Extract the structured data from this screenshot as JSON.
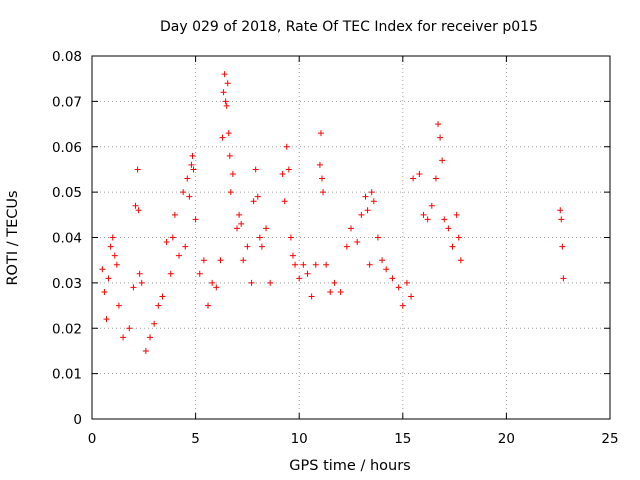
{
  "chart_data": {
    "type": "scatter",
    "title": "Day 029 of 2018, Rate Of TEC Index for receiver p015",
    "xlabel": "GPS time / hours",
    "ylabel": "ROTI / TECUs",
    "xlim": [
      0,
      25
    ],
    "ylim": [
      0,
      0.08
    ],
    "x_ticks": [
      0,
      5,
      10,
      15,
      20,
      25
    ],
    "y_ticks": [
      0,
      0.01,
      0.02,
      0.03,
      0.04,
      0.05,
      0.06,
      0.07,
      0.08
    ],
    "x_tick_labels": [
      "0",
      "5",
      "10",
      "15",
      "20",
      "25"
    ],
    "y_tick_labels": [
      "0",
      "0.01",
      "0.02",
      "0.03",
      "0.04",
      "0.05",
      "0.06",
      "0.07",
      "0.08"
    ],
    "grid": true,
    "marker": "plus",
    "color": "#ff0000",
    "series": [
      {
        "x": [
          0.5,
          0.6,
          0.7,
          0.8,
          0.9,
          1.0,
          1.1,
          1.2,
          1.3,
          1.5,
          1.8,
          2.0,
          2.1,
          2.2,
          2.25,
          2.3,
          2.4,
          2.6,
          2.8,
          3.0,
          3.2,
          3.4,
          3.6,
          3.8,
          3.9,
          4.0,
          4.2,
          4.4,
          4.5,
          4.6,
          4.7,
          4.8,
          4.85,
          4.9,
          5.0,
          5.2,
          5.4,
          5.6,
          5.8,
          6.0,
          6.2,
          6.3,
          6.35,
          6.4,
          6.45,
          6.5,
          6.55,
          6.6,
          6.65,
          6.7,
          6.8,
          7.0,
          7.1,
          7.2,
          7.3,
          7.5,
          7.7,
          7.8,
          7.9,
          8.0,
          8.1,
          8.2,
          8.4,
          8.6,
          9.2,
          9.3,
          9.4,
          9.5,
          9.6,
          9.7,
          9.8,
          10.0,
          10.2,
          10.4,
          10.6,
          10.8,
          11.0,
          11.05,
          11.1,
          11.15,
          11.3,
          11.5,
          11.7,
          12.0,
          12.3,
          12.5,
          12.8,
          13.0,
          13.2,
          13.3,
          13.4,
          13.5,
          13.6,
          13.8,
          14.0,
          14.2,
          14.5,
          14.8,
          15.0,
          15.2,
          15.4,
          15.5,
          15.8,
          16.0,
          16.2,
          16.4,
          16.6,
          16.7,
          16.8,
          16.9,
          17.0,
          17.2,
          17.4,
          17.6,
          17.7,
          17.8,
          22.6,
          22.65,
          22.7,
          22.75
        ],
        "y": [
          0.033,
          0.028,
          0.022,
          0.031,
          0.038,
          0.04,
          0.036,
          0.034,
          0.025,
          0.018,
          0.02,
          0.029,
          0.047,
          0.055,
          0.046,
          0.032,
          0.03,
          0.015,
          0.018,
          0.021,
          0.025,
          0.027,
          0.039,
          0.032,
          0.04,
          0.045,
          0.036,
          0.05,
          0.038,
          0.053,
          0.049,
          0.056,
          0.058,
          0.055,
          0.044,
          0.032,
          0.035,
          0.025,
          0.03,
          0.029,
          0.035,
          0.062,
          0.072,
          0.076,
          0.07,
          0.069,
          0.074,
          0.063,
          0.058,
          0.05,
          0.054,
          0.042,
          0.045,
          0.043,
          0.035,
          0.038,
          0.03,
          0.048,
          0.055,
          0.049,
          0.04,
          0.038,
          0.042,
          0.03,
          0.054,
          0.048,
          0.06,
          0.055,
          0.04,
          0.036,
          0.034,
          0.031,
          0.034,
          0.032,
          0.027,
          0.034,
          0.056,
          0.063,
          0.053,
          0.05,
          0.034,
          0.028,
          0.03,
          0.028,
          0.038,
          0.042,
          0.039,
          0.045,
          0.049,
          0.046,
          0.034,
          0.05,
          0.048,
          0.04,
          0.035,
          0.033,
          0.031,
          0.029,
          0.025,
          0.03,
          0.027,
          0.053,
          0.054,
          0.045,
          0.044,
          0.047,
          0.053,
          0.065,
          0.062,
          0.057,
          0.044,
          0.042,
          0.038,
          0.045,
          0.04,
          0.035,
          0.046,
          0.044,
          0.038,
          0.031
        ]
      }
    ]
  }
}
